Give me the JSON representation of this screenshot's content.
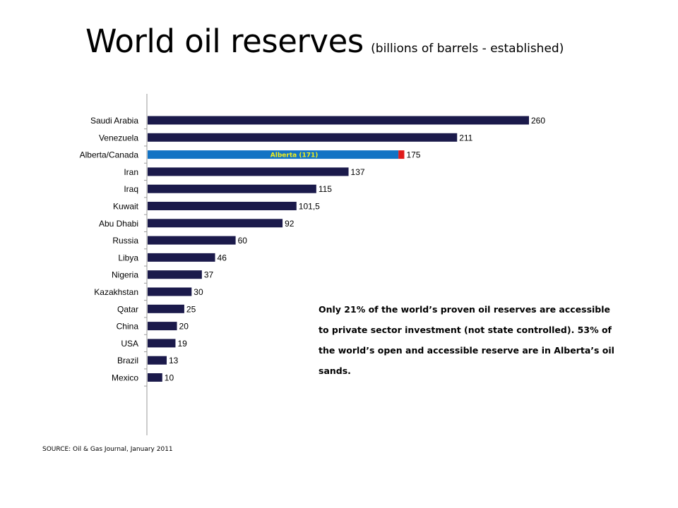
{
  "title": "World oil reserves",
  "subtitle": "(billions of barrels - established)",
  "note": "Only 21% of the world’s proven oil reserves are accessible to private sector investment (not state controlled). 53% of the world’s open and accessible reserve are in Alberta’s oil sands.",
  "source": "SOURCE: Oil & Gas Journal, January 2011",
  "colors": {
    "bar": "#1b1a4b",
    "alberta": "#1273c4",
    "alberta_rest": "#e01b1b",
    "alberta_label": "#f2ef1c"
  },
  "chart_data": {
    "type": "bar",
    "orientation": "horizontal",
    "title": "World oil reserves",
    "subtitle": "(billions of barrels - established)",
    "categories": [
      "Saudi Arabia",
      "Venezuela",
      "Alberta/Canada",
      "Iran",
      "Iraq",
      "Kuwait",
      "Abu Dhabi",
      "Russia",
      "Libya",
      "Nigeria",
      "Kazakhstan",
      "Qatar",
      "China",
      "USA",
      "Brazil",
      "Mexico"
    ],
    "values": [
      260,
      211,
      175,
      137,
      115,
      101.5,
      92,
      60,
      46,
      37,
      30,
      25,
      20,
      19,
      13,
      10
    ],
    "value_labels": [
      "260",
      "211",
      "175",
      "137",
      "115",
      "101,5",
      "92",
      "60",
      "46",
      "37",
      "30",
      "25",
      "20",
      "19",
      "13",
      "10"
    ],
    "highlight": {
      "category": "Alberta/Canada",
      "segment_value": 171,
      "segment_label": "Alberta (171)"
    },
    "xlim": [
      0,
      260
    ],
    "grid": false,
    "legend": "none"
  }
}
